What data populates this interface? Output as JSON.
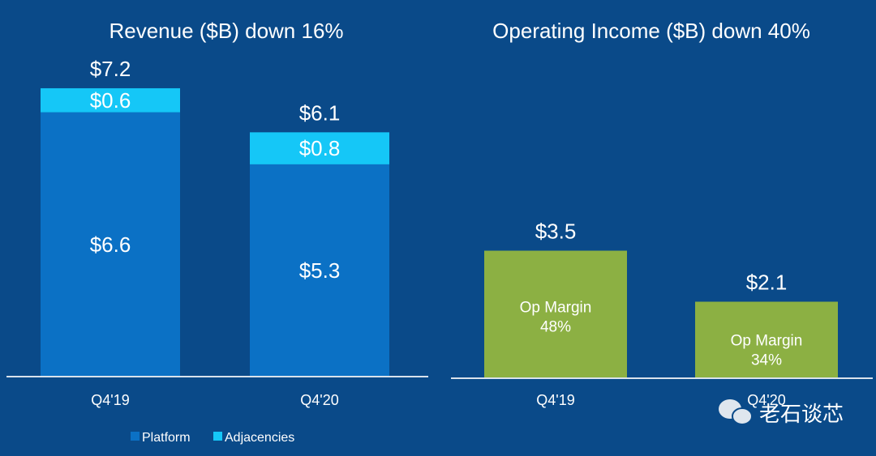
{
  "colors": {
    "background": "#0a4a89",
    "platform": "#0b71c5",
    "adjacencies": "#15c7f7",
    "op_income": "#8cb043"
  },
  "chart_data": [
    {
      "type": "bar",
      "stacked": true,
      "title": "Revenue ($B) down 16%",
      "categories": [
        "Q4'19",
        "Q4'20"
      ],
      "series": [
        {
          "name": "Platform",
          "values": [
            6.6,
            5.3
          ],
          "labels": [
            "$6.6",
            "$5.3"
          ]
        },
        {
          "name": "Adjacencies",
          "values": [
            0.6,
            0.8
          ],
          "labels": [
            "$0.6",
            "$0.8"
          ]
        }
      ],
      "totals": [
        7.2,
        6.1
      ],
      "total_labels": [
        "$7.2",
        "$6.1"
      ],
      "legend": [
        "Platform",
        "Adjacencies"
      ],
      "legend_position": "bottom-left",
      "ylim": [
        0,
        7.2
      ]
    },
    {
      "type": "bar",
      "title": "Operating Income ($B) down 40%",
      "categories": [
        "Q4'19",
        "Q4'20"
      ],
      "values": [
        3.5,
        2.1
      ],
      "value_labels": [
        "$3.5",
        "$2.1"
      ],
      "inner_labels": [
        [
          "Op Margin",
          "48%"
        ],
        [
          "Op Margin",
          "34%"
        ]
      ],
      "ylim": [
        0,
        3.5
      ]
    }
  ],
  "watermark": "老石谈芯"
}
